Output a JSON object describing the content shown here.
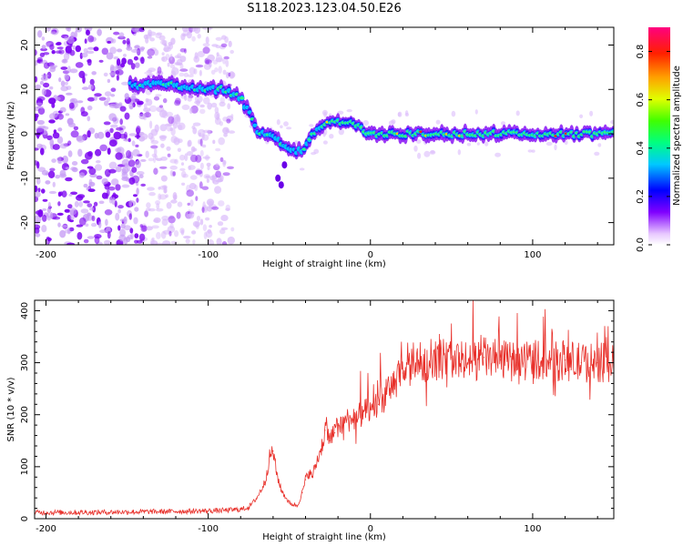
{
  "figure": {
    "title": "S118.2023.123.04.50.E26"
  },
  "chart_data": [
    {
      "type": "heatmap",
      "xlabel": "Height of straight line (km)",
      "ylabel": "Frequency (Hz)",
      "xlim": [
        -207,
        150
      ],
      "ylim": [
        -25,
        24
      ],
      "xticks": [
        -200,
        -100,
        0,
        100
      ],
      "yticks": [
        -20,
        -10,
        0,
        10,
        20
      ],
      "ridge_x": [
        -140,
        -130,
        -120,
        -110,
        -100,
        -90,
        -80,
        -75,
        -70,
        -65,
        -60,
        -55,
        -50,
        -45,
        -40,
        -35,
        -30,
        -20,
        -10,
        0,
        20,
        40,
        60,
        80,
        100,
        120,
        140,
        150
      ],
      "ridge_y": [
        11,
        11,
        11,
        10,
        10,
        10,
        8,
        5,
        1,
        0,
        -1,
        -2,
        -3,
        -4,
        -3,
        0,
        2,
        3,
        2,
        0,
        0,
        0,
        0,
        0,
        0,
        0,
        0,
        0
      ],
      "noise_floor_end_x": -85,
      "colorbar": {
        "label": "Normalized spectral amplitude",
        "ticks": [
          0.0,
          0.2,
          0.4,
          0.6,
          0.8
        ],
        "range": [
          0,
          0.9
        ],
        "colormap": "gist_rainbow_r"
      }
    },
    {
      "type": "line",
      "xlabel": "Height of straight line (km)",
      "ylabel": "SNR (10 * v/v)",
      "xlim": [
        -207,
        150
      ],
      "ylim": [
        0,
        420
      ],
      "xticks": [
        -200,
        -100,
        0,
        100
      ],
      "yticks": [
        0,
        100,
        200,
        300,
        400
      ],
      "color": "#e8302a",
      "series": [
        {
          "x": [
            -207,
            -180,
            -150,
            -120,
            -100,
            -90,
            -80,
            -75,
            -70,
            -65,
            -62,
            -60,
            -58,
            -55,
            -50,
            -45,
            -42,
            -40,
            -38,
            -36,
            -34,
            -30,
            -28,
            -25,
            -22,
            -20,
            -15,
            -10,
            -5,
            0,
            5,
            10,
            15,
            20,
            25,
            30,
            40,
            50,
            60,
            70,
            80,
            90,
            100,
            110,
            120,
            130,
            140,
            150
          ],
          "values": [
            12,
            12,
            13,
            14,
            15,
            16,
            18,
            22,
            40,
            70,
            120,
            130,
            90,
            55,
            30,
            25,
            50,
            75,
            90,
            80,
            100,
            140,
            170,
            150,
            165,
            180,
            190,
            195,
            200,
            210,
            220,
            240,
            265,
            280,
            290,
            300,
            305,
            310,
            300,
            310,
            305,
            300,
            310,
            300,
            305,
            300,
            300,
            300
          ]
        }
      ]
    }
  ]
}
